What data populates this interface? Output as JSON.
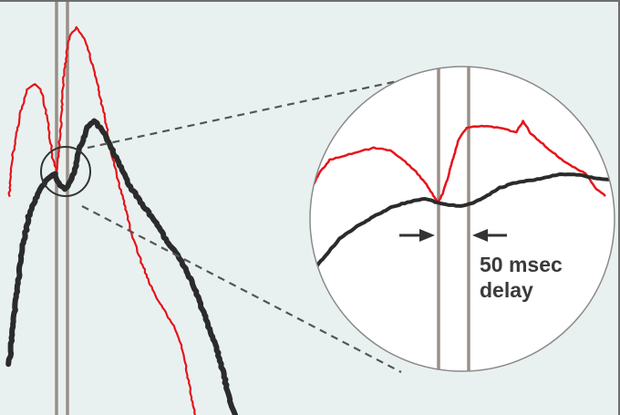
{
  "chart_data": {
    "type": "line",
    "title": "",
    "xlabel": "",
    "ylabel": "",
    "grid": false,
    "legend": "none",
    "series": [
      {
        "id": "red-trace",
        "color": "#e5141b",
        "style": "thin"
      },
      {
        "id": "black-trace",
        "color": "#2b2b2b",
        "style": "thick"
      }
    ],
    "markers": {
      "vertical_lines": 2,
      "line_color": "#9a8f88"
    },
    "inset": {
      "shape": "magnified-circle",
      "annotation_line1": "50 msec",
      "annotation_line2": "delay",
      "delay_ms": 50
    },
    "colors": {
      "background": "#e9f1f0",
      "inset_fill": "#ffffff",
      "frame": "#6f6f6f"
    }
  }
}
